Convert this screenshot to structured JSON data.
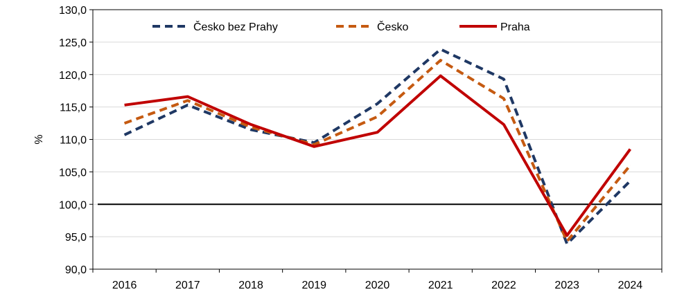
{
  "chart_data": {
    "type": "line",
    "ylabel": "%",
    "ylim": [
      90,
      130
    ],
    "y_ticks": [
      "90,0",
      "95,0",
      "100,0",
      "105,0",
      "110,0",
      "115,0",
      "120,0",
      "125,0",
      "130,0"
    ],
    "categories": [
      "2016",
      "2017",
      "2018",
      "2019",
      "2020",
      "2021",
      "2022",
      "2023",
      "2024"
    ],
    "baseline": 100,
    "grid": true,
    "legend_position": "top",
    "series": [
      {
        "name": "Česko bez Prahy",
        "color": "#1f3864",
        "dash": "dashed",
        "values": [
          110.7,
          115.3,
          111.5,
          109.5,
          115.5,
          123.9,
          119.3,
          93.9,
          103.6
        ]
      },
      {
        "name": "Česko",
        "color": "#c55a11",
        "dash": "dashed",
        "values": [
          112.5,
          116.0,
          111.9,
          109.2,
          113.5,
          122.2,
          116.3,
          94.3,
          106.0
        ]
      },
      {
        "name": "Praha",
        "color": "#c00000",
        "dash": "solid",
        "values": [
          115.3,
          116.6,
          112.3,
          108.9,
          111.1,
          119.8,
          112.3,
          95.2,
          108.5
        ]
      }
    ]
  }
}
